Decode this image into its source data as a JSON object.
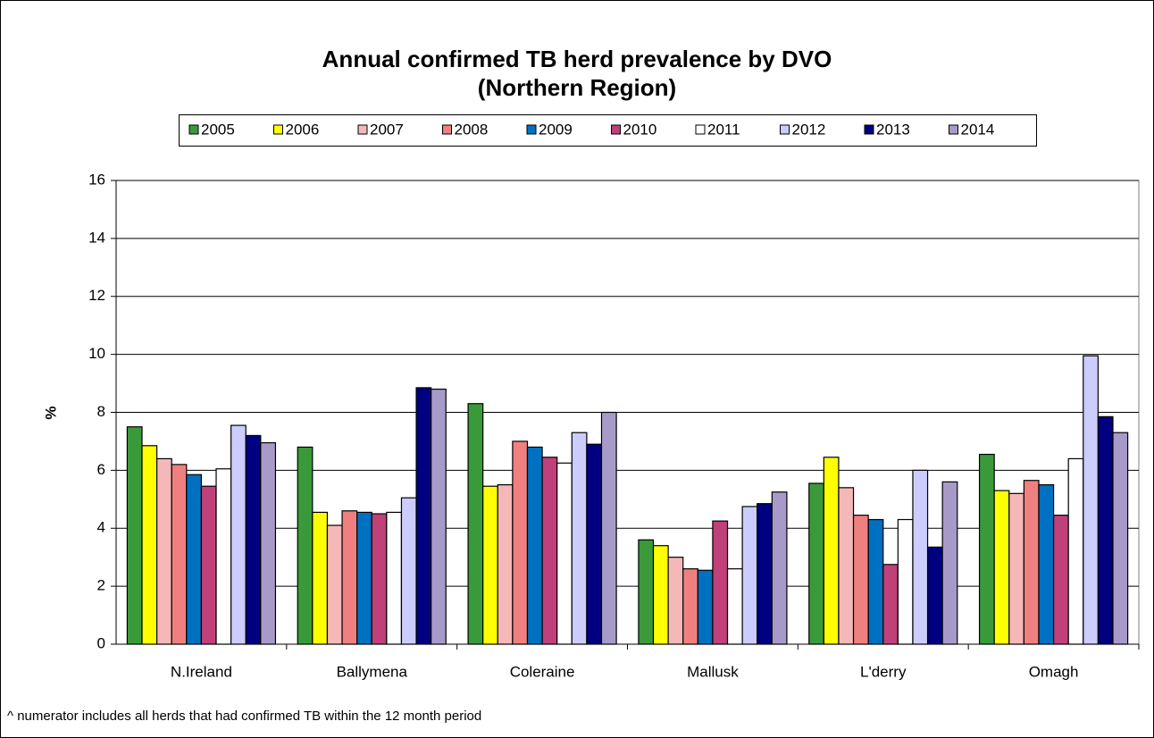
{
  "chart_data": {
    "type": "bar",
    "title": "Annual confirmed TB herd prevalence by DVO",
    "subtitle": "(Northern Region)",
    "y_label": "%",
    "footnote": "^ numerator includes all herds that had confirmed TB within the 12 month period",
    "categories": [
      "N.Ireland",
      "Ballymena",
      "Coleraine",
      "Mallusk",
      "L'derry",
      "Omagh"
    ],
    "series": [
      {
        "name": "2005",
        "color": "#3a9a3a",
        "values": [
          7.5,
          6.8,
          8.3,
          3.6,
          5.55,
          6.55
        ]
      },
      {
        "name": "2006",
        "color": "#ffff00",
        "values": [
          6.85,
          4.55,
          5.45,
          3.4,
          6.45,
          5.3
        ]
      },
      {
        "name": "2007",
        "color": "#f4b8b8",
        "values": [
          6.4,
          4.1,
          5.5,
          3.0,
          5.4,
          5.2
        ]
      },
      {
        "name": "2008",
        "color": "#f08080",
        "values": [
          6.2,
          4.6,
          7.0,
          2.6,
          4.45,
          5.65
        ]
      },
      {
        "name": "2009",
        "color": "#0070c0",
        "values": [
          5.85,
          4.55,
          6.8,
          2.55,
          4.3,
          5.5
        ]
      },
      {
        "name": "2010",
        "color": "#c0407a",
        "values": [
          5.45,
          4.5,
          6.45,
          4.25,
          2.75,
          4.45
        ]
      },
      {
        "name": "2011",
        "color": "#ffffff",
        "values": [
          6.05,
          4.55,
          6.25,
          2.6,
          4.3,
          6.4
        ]
      },
      {
        "name": "2012",
        "color": "#ccccff",
        "values": [
          7.55,
          5.05,
          7.3,
          4.75,
          6.0,
          9.95
        ]
      },
      {
        "name": "2013",
        "color": "#000080",
        "values": [
          7.2,
          8.85,
          6.9,
          4.85,
          3.35,
          7.85
        ]
      },
      {
        "name": "2014",
        "color": "#a89ac8",
        "values": [
          6.95,
          8.8,
          8.0,
          5.25,
          5.6,
          7.3
        ]
      }
    ],
    "ylim": [
      0,
      16
    ],
    "yticks": [
      0,
      2,
      4,
      6,
      8,
      10,
      12,
      14,
      16
    ],
    "grid": true
  }
}
